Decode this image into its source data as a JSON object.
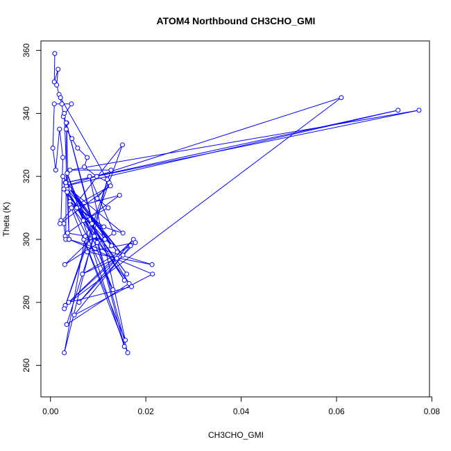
{
  "chart_data": {
    "type": "line",
    "title": "ATOM4 Northbound CH3CHO_GMI",
    "xlabel": "CH3CHO_GMI",
    "ylabel": "Theta (K)",
    "xlim": [
      -0.002,
      0.0795
    ],
    "ylim": [
      250,
      363
    ],
    "x_ticks": [
      0.0,
      0.02,
      0.04,
      0.06,
      0.08
    ],
    "x_tick_labels": [
      "0.00",
      "0.02",
      "0.04",
      "0.06",
      "0.08"
    ],
    "y_ticks": [
      260,
      280,
      300,
      320,
      340,
      360
    ],
    "y_tick_labels": [
      "260",
      "280",
      "300",
      "320",
      "340",
      "360"
    ],
    "grid": false,
    "legend": "none",
    "series_color": "#0000ff",
    "markers": "open-circle",
    "series": [
      {
        "x": [
          0.0009,
          0.0008,
          0.0016,
          0.0013,
          0.0018,
          0.0024,
          0.0027,
          0.0044,
          0.0008,
          0.0005,
          0.0011,
          0.0019,
          0.0026,
          0.0022,
          0.0028,
          0.0031,
          0.0032,
          0.0034,
          0.0039,
          0.0029,
          0.0033,
          0.0045,
          0.0057,
          0.0077,
          0.0071,
          0.0097,
          0.0123,
          0.0098,
          0.0121,
          0.0069,
          0.0152,
          0.004,
          0.0128,
          0.0041,
          0.0112,
          0.0055,
          0.0098,
          0.0035,
          0.0152,
          0.0031,
          0.014,
          0.0026,
          0.0155,
          0.0035,
          0.016,
          0.0028,
          0.0131,
          0.0035,
          0.0155,
          0.0033,
          0.0162,
          0.0041,
          0.017,
          0.0038,
          0.0174,
          0.006,
          0.0178,
          0.0077,
          0.0213,
          0.0039,
          0.0214,
          0.005,
          0.0168,
          0.0067,
          0.0139,
          0.0031,
          0.061,
          0.0033,
          0.0729,
          0.0032,
          0.0773,
          0.0041,
          0.0127,
          0.0029,
          0.0151,
          0.002,
          0.0126,
          0.0044,
          0.0145,
          0.0036,
          0.0114,
          0.007,
          0.0157,
          0.0082,
          0.0133,
          0.003,
          0.0092,
          0.0034,
          0.0165,
          0.0087,
          0.0073,
          0.0029,
          0.0119,
          0.0021
        ],
        "y": [
          359,
          350,
          354,
          349,
          346,
          343,
          339,
          343,
          343,
          329,
          322,
          335,
          326,
          306,
          305,
          301,
          300,
          337,
          300,
          340,
          335,
          332,
          329,
          326,
          323,
          320,
          318,
          313,
          310,
          306,
          302,
          316,
          298,
          312,
          304,
          310,
          299,
          316,
          295,
          318,
          296,
          320,
          287,
          315,
          289,
          316,
          284,
          321,
          266,
          337,
          264,
          311,
          285,
          280,
          300,
          280,
          299,
          296,
          292,
          300,
          289,
          276,
          298,
          289,
          294,
          279,
          345,
          317,
          341,
          318,
          341,
          322,
          322,
          278,
          330,
          305,
          317,
          310,
          314,
          302,
          300,
          300,
          268,
          320,
          302,
          292,
          301,
          273,
          286,
          305,
          301,
          264,
          319,
          345
        ]
      }
    ]
  }
}
